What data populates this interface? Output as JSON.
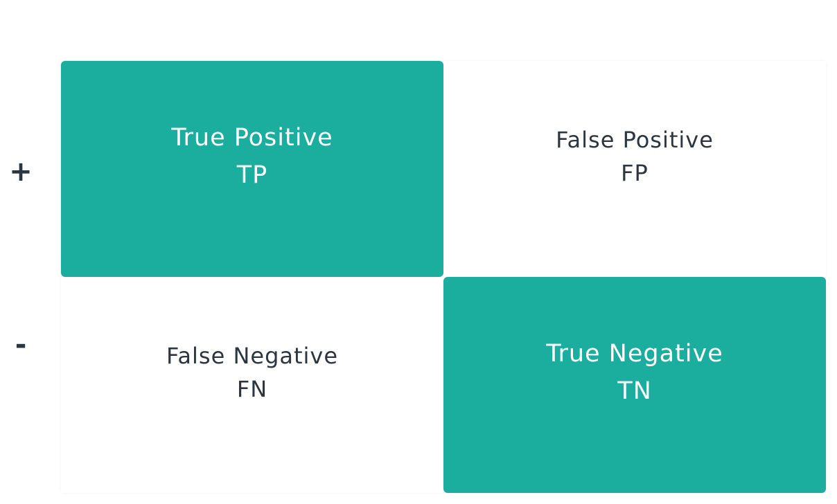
{
  "row_labels": {
    "positive": "+",
    "negative": "-"
  },
  "cells": {
    "tp": {
      "name": "True Positive",
      "abbr": "TP"
    },
    "fp": {
      "name": "False Positive",
      "abbr": "FP"
    },
    "fn": {
      "name": "False Negative",
      "abbr": "FN"
    },
    "tn": {
      "name": "True Negative",
      "abbr": "TN"
    }
  },
  "colors": {
    "highlight": "#1bae9f",
    "text": "#2b3642",
    "highlight_text": "#ffffff",
    "background": "#ffffff"
  }
}
